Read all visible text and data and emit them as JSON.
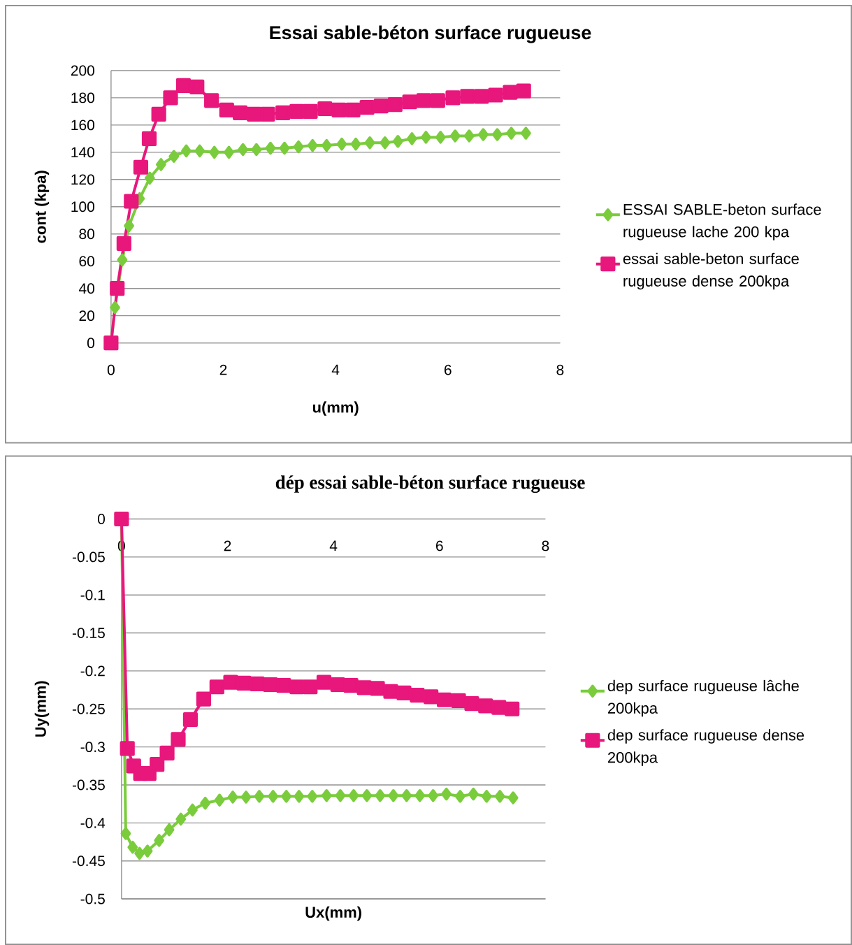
{
  "chart_data": [
    {
      "type": "line",
      "title": "Essai sable-béton surface rugueuse",
      "xlabel": "u(mm)",
      "ylabel": "cont (kpa)",
      "xlim": [
        0,
        8
      ],
      "ylim": [
        0,
        200
      ],
      "xticks": [
        0,
        2,
        4,
        6,
        8
      ],
      "yticks": [
        0,
        20,
        40,
        60,
        80,
        100,
        120,
        140,
        160,
        180,
        200
      ],
      "grid": "y",
      "legend": "right",
      "series": [
        {
          "name": "ESSAI SABLE-beton surface rugueuse lache 200 kpa",
          "color": "#7acc3c",
          "marker": "diamond",
          "x": [
            0,
            0.07,
            0.2,
            0.32,
            0.51,
            0.69,
            0.89,
            1.12,
            1.34,
            1.58,
            1.84,
            2.1,
            2.35,
            2.59,
            2.84,
            3.09,
            3.34,
            3.59,
            3.84,
            4.11,
            4.36,
            4.61,
            4.88,
            5.11,
            5.36,
            5.61,
            5.87,
            6.13,
            6.38,
            6.63,
            6.88,
            7.13,
            7.39
          ],
          "values": [
            0,
            26,
            61,
            86,
            106,
            121,
            131,
            137,
            141,
            141,
            140,
            140,
            142,
            142,
            143,
            143,
            144,
            145,
            145,
            146,
            146,
            147,
            147,
            148,
            150,
            151,
            151,
            152,
            152,
            153,
            153,
            154,
            154
          ]
        },
        {
          "name": "essai sable-beton surface rugueuse dense 200kpa",
          "color": "#e8177c",
          "marker": "square",
          "x": [
            0,
            0.11,
            0.23,
            0.36,
            0.53,
            0.68,
            0.85,
            1.06,
            1.29,
            1.53,
            1.79,
            2.06,
            2.3,
            2.55,
            2.79,
            3.06,
            3.31,
            3.55,
            3.81,
            4.06,
            4.31,
            4.56,
            4.81,
            5.06,
            5.32,
            5.57,
            5.82,
            6.09,
            6.35,
            6.6,
            6.85,
            7.11,
            7.35
          ],
          "values": [
            0,
            40,
            73,
            104,
            129,
            150,
            168,
            180,
            189,
            188,
            178,
            171,
            169,
            168,
            168,
            169,
            170,
            170,
            172,
            171,
            171,
            173,
            174,
            175,
            177,
            178,
            178,
            180,
            181,
            181,
            182,
            184,
            185
          ]
        }
      ]
    },
    {
      "type": "line",
      "title": "dép essai sable-béton surface rugueuse",
      "xlabel": "Ux(mm)",
      "ylabel": "Uy(mm)",
      "xlim": [
        0,
        8
      ],
      "ylim": [
        -0.5,
        0
      ],
      "xticks": [
        0,
        2,
        4,
        6,
        8
      ],
      "yticks": [
        -0.5,
        -0.45,
        -0.4,
        -0.35,
        -0.3,
        -0.25,
        -0.2,
        -0.15,
        -0.1,
        -0.05,
        0
      ],
      "grid": "y",
      "legend": "right",
      "series": [
        {
          "name": "dep surface rugueuse lâche 200kpa",
          "color": "#7acc3c",
          "marker": "diamond",
          "x": [
            0,
            0.08,
            0.21,
            0.34,
            0.49,
            0.71,
            0.9,
            1.12,
            1.34,
            1.58,
            1.85,
            2.1,
            2.35,
            2.6,
            2.86,
            3.11,
            3.35,
            3.6,
            3.87,
            4.13,
            4.38,
            4.63,
            4.88,
            5.13,
            5.38,
            5.63,
            5.88,
            6.13,
            6.39,
            6.64,
            6.89,
            7.14,
            7.39
          ],
          "values": [
            0,
            -0.414,
            -0.432,
            -0.44,
            -0.437,
            -0.423,
            -0.409,
            -0.395,
            -0.383,
            -0.374,
            -0.37,
            -0.366,
            -0.366,
            -0.365,
            -0.365,
            -0.365,
            -0.365,
            -0.365,
            -0.364,
            -0.364,
            -0.364,
            -0.364,
            -0.364,
            -0.364,
            -0.364,
            -0.364,
            -0.364,
            -0.362,
            -0.365,
            -0.362,
            -0.365,
            -0.365,
            -0.367
          ]
        },
        {
          "name": "dep surface rugueuse  dense 200kpa",
          "color": "#e8177c",
          "marker": "square",
          "x": [
            0,
            0.11,
            0.23,
            0.36,
            0.52,
            0.67,
            0.86,
            1.07,
            1.3,
            1.55,
            1.8,
            2.06,
            2.31,
            2.56,
            2.81,
            3.06,
            3.31,
            3.56,
            3.82,
            4.08,
            4.33,
            4.58,
            4.83,
            5.08,
            5.33,
            5.58,
            5.84,
            6.09,
            6.36,
            6.61,
            6.87,
            7.12,
            7.37
          ],
          "values": [
            0,
            -0.302,
            -0.325,
            -0.335,
            -0.335,
            -0.323,
            -0.308,
            -0.29,
            -0.264,
            -0.237,
            -0.221,
            -0.215,
            -0.216,
            -0.217,
            -0.218,
            -0.219,
            -0.221,
            -0.221,
            -0.215,
            -0.218,
            -0.219,
            -0.222,
            -0.223,
            -0.227,
            -0.229,
            -0.232,
            -0.234,
            -0.238,
            -0.239,
            -0.243,
            -0.246,
            -0.248,
            -0.25
          ]
        }
      ]
    }
  ]
}
